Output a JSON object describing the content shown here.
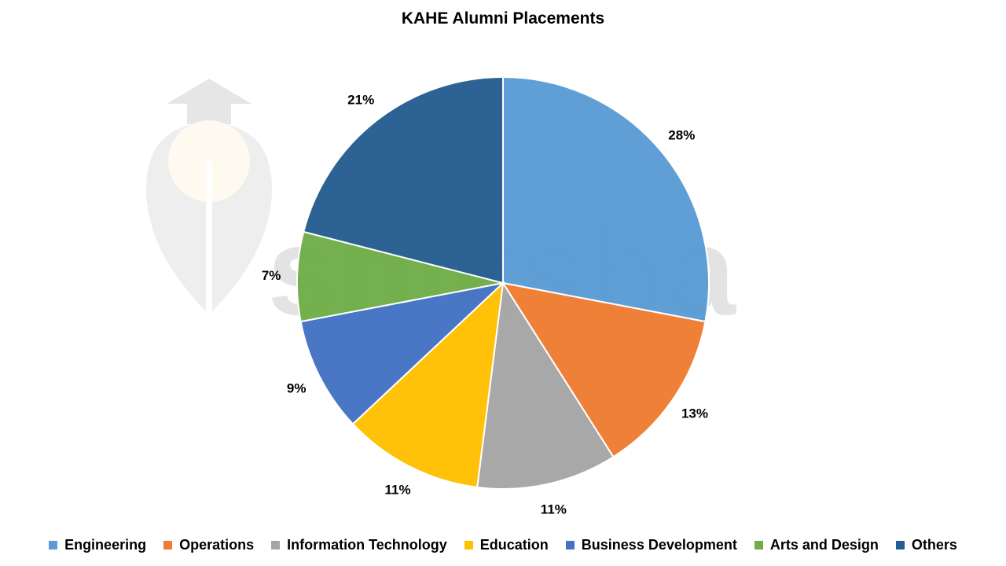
{
  "chart_data": {
    "type": "pie",
    "title": "KAHE Alumni Placements",
    "categories": [
      "Engineering",
      "Operations",
      "Information Technology",
      "Education",
      "Business Development",
      "Arts and Design",
      "Others"
    ],
    "values": [
      28,
      13,
      11,
      11,
      9,
      7,
      21
    ],
    "labels": [
      "28%",
      "13%",
      "11%",
      "11%",
      "9%",
      "7%",
      "21%"
    ],
    "colors": [
      "#5B9BD5",
      "#ED7D31",
      "#A5A5A5",
      "#FFC000",
      "#4472C4",
      "#70AD47",
      "#255E91"
    ],
    "legend_position": "bottom",
    "start_angle": "12 o'clock, clockwise"
  },
  "watermark": {
    "text": "shiksha",
    "icon": "graduation-cap-logo-icon"
  }
}
